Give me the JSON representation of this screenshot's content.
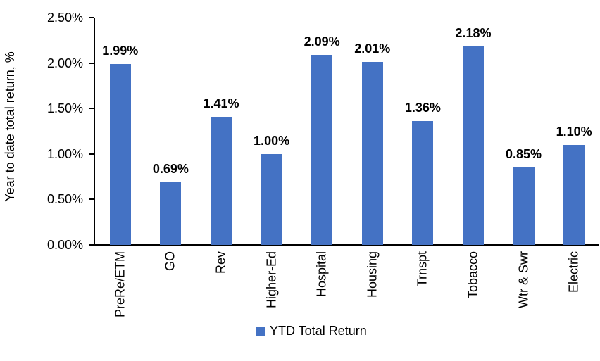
{
  "chart_data": {
    "type": "bar",
    "title": "",
    "ylabel": "Year to date total return, %",
    "xlabel": "",
    "categories": [
      "PreRe/ETM",
      "GO",
      "Rev",
      "Higher-Ed",
      "Hospital",
      "Housing",
      "Trnspt",
      "Tobacco",
      "Wtr & Swr",
      "Electric"
    ],
    "values": [
      1.99,
      0.69,
      1.41,
      1.0,
      2.09,
      2.01,
      1.36,
      2.18,
      0.85,
      1.1
    ],
    "value_labels": [
      "1.99%",
      "0.69%",
      "1.41%",
      "1.00%",
      "2.09%",
      "2.01%",
      "1.36%",
      "2.18%",
      "0.85%",
      "1.10%"
    ],
    "ylim": [
      0,
      2.5
    ],
    "ytick_labels": [
      "0.00%",
      "0.50%",
      "1.00%",
      "1.50%",
      "2.00%",
      "2.50%"
    ],
    "grid": false,
    "legend_label": "YTD Total Return",
    "legend_position": "bottom-center",
    "bar_color": "#4472C4",
    "axis_color": "#000000",
    "text_color": "#000000"
  }
}
